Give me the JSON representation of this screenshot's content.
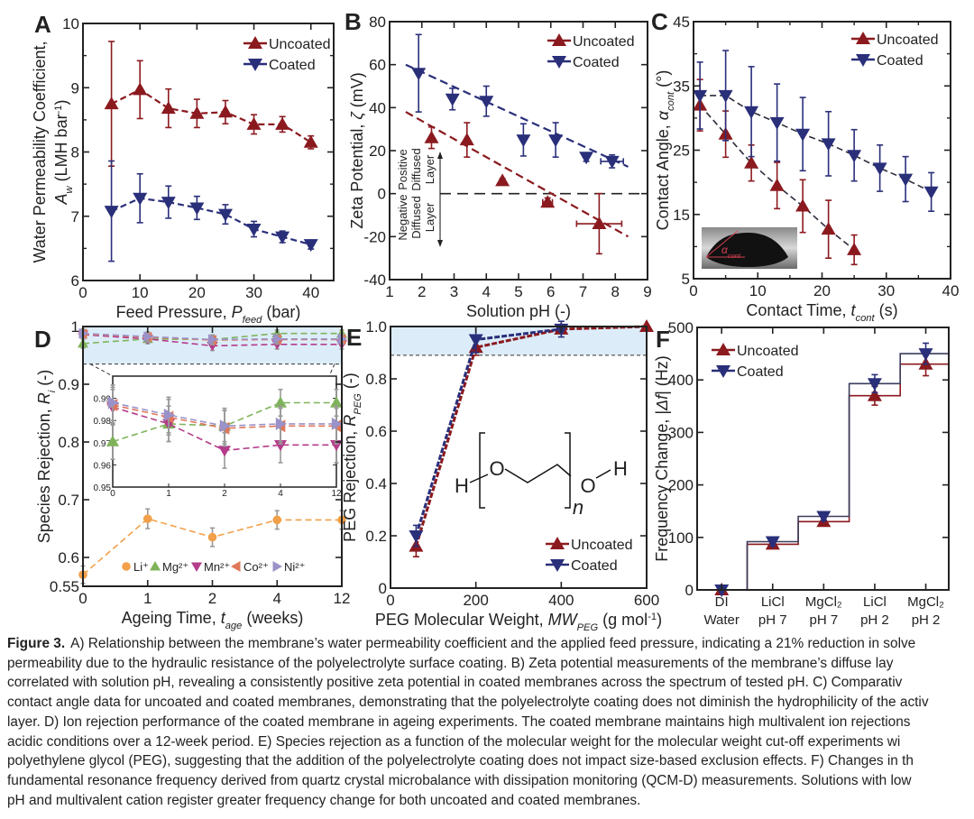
{
  "caption": {
    "label": "Figure 3.",
    "lines": [
      "A) Relationship between the membrane’s water permeability coefficient and the applied feed pressure, indicating a 21% reduction in solve",
      "permeability due to the hydraulic resistance of the polyelectrolyte surface coating. B) Zeta potential measurements of the membrane’s diffuse lay",
      "correlated with solution pH, revealing a consistently positive zeta potential in coated membranes across the spectrum of tested pH. C) Comparativ",
      "contact angle data for uncoated and coated membranes, demonstrating that the polyelectrolyte coating does not diminish the hydrophilicity of the activ",
      "layer. D) Ion rejection performance of the coated membrane in ageing experiments. The coated membrane maintains high multivalent ion rejections",
      "acidic conditions over a 12-week period. E) Species rejection as a function of the molecular weight for the molecular weight cut-off experiments wi",
      "polyethylene glycol (PEG), suggesting that the addition of the polyelectrolyte coating does not impact size-based exclusion effects. F) Changes in th",
      "fundamental resonance frequency derived from quartz crystal microbalance with dissipation monitoring (QCM-D) measurements. Solutions with low",
      "pH and multivalent cation register greater frequency change for both uncoated and coated membranes."
    ]
  },
  "colors": {
    "uncoated": "#8b1a1f",
    "coated": "#2a2f7a",
    "band": "#dcedf9"
  },
  "chart_data": [
    {
      "panel": "A",
      "type": "line",
      "xlabel": [
        {
          "t": "Feed Pressure, "
        },
        {
          "t": "P",
          "s": "i"
        },
        {
          "t": "feed",
          "s": "sub"
        },
        {
          "t": " (bar)"
        }
      ],
      "ylabel": [
        [
          {
            "t": "Water Permeability Coefficient,"
          }
        ],
        [
          {
            "t": "A",
            "s": "i"
          },
          {
            "t": "w",
            "s": "sub"
          },
          {
            "t": " (LMH bar"
          },
          {
            "t": "-1",
            "s": "sup"
          },
          {
            "t": ")"
          }
        ]
      ],
      "xlim": [
        0,
        44
      ],
      "ylim": [
        6,
        10
      ],
      "xticks": [
        0,
        10,
        20,
        30,
        40
      ],
      "xticklabels": [
        "0",
        "10",
        "20",
        "30",
        "40"
      ],
      "yticks": [
        6,
        7,
        8,
        9,
        10
      ],
      "yticklabels": [
        "6",
        "7",
        "8",
        "9",
        "10"
      ],
      "yminor": [
        6.5,
        7.5,
        8.5,
        9.5
      ],
      "legend": "top-right",
      "series": [
        {
          "name": "Uncoated",
          "color": "#8b1a1f",
          "marker": "triangle-up",
          "x": [
            5,
            10,
            15,
            20,
            25,
            30,
            35,
            40
          ],
          "y": [
            8.75,
            8.97,
            8.68,
            8.6,
            8.62,
            8.43,
            8.43,
            8.15
          ],
          "yerr": [
            0.97,
            0.45,
            0.3,
            0.22,
            0.18,
            0.15,
            0.12,
            0.1
          ]
        },
        {
          "name": "Coated",
          "color": "#2a2f7a",
          "marker": "triangle-down",
          "x": [
            5,
            10,
            15,
            20,
            25,
            30,
            35,
            40
          ],
          "y": [
            7.08,
            7.28,
            7.22,
            7.13,
            7.03,
            6.8,
            6.68,
            6.56
          ],
          "yerr": [
            0.78,
            0.38,
            0.25,
            0.18,
            0.15,
            0.12,
            0.09,
            0.07
          ]
        }
      ]
    },
    {
      "panel": "B",
      "type": "scatter",
      "xlabel": [
        {
          "t": "Solution pH (-)"
        }
      ],
      "ylabel": [
        [
          {
            "t": "Zeta Potential, "
          },
          {
            "t": "ζ",
            "s": "i"
          },
          {
            "t": " (mV)"
          }
        ]
      ],
      "xlim": [
        1,
        9
      ],
      "ylim": [
        -40,
        80
      ],
      "xticks": [
        1,
        2,
        3,
        4,
        5,
        6,
        7,
        8,
        9
      ],
      "xticklabels": [
        "1",
        "2",
        "3",
        "4",
        "5",
        "6",
        "7",
        "8",
        "9"
      ],
      "yticks": [
        -40,
        -20,
        0,
        20,
        40,
        60,
        80
      ],
      "yticklabels": [
        "-40",
        "-20",
        "0",
        "20",
        "40",
        "60",
        "80"
      ],
      "legend": "top-right",
      "series": [
        {
          "name": "Uncoated",
          "color": "#8b1a1f",
          "marker": "triangle-up",
          "x": [
            2.3,
            3.4,
            4.5,
            5.9,
            7.5
          ],
          "y": [
            26,
            25,
            6,
            -4,
            -14
          ],
          "yerr": [
            5,
            8,
            1,
            2,
            14
          ],
          "xerr": [
            0,
            0,
            0,
            0.15,
            0.7
          ],
          "trend": [
            [
              1.5,
              38
            ],
            [
              8.4,
              -20
            ]
          ]
        },
        {
          "name": "Coated",
          "color": "#2a2f7a",
          "marker": "triangle-down",
          "x": [
            1.9,
            2.95,
            4.0,
            5.15,
            6.15,
            7.1,
            7.9
          ],
          "y": [
            56,
            44,
            43,
            25,
            25,
            17,
            15
          ],
          "yerr": [
            18,
            5,
            7,
            7.5,
            8,
            2,
            3
          ],
          "xerr": [
            0,
            0,
            0,
            0,
            0,
            0,
            0.35
          ],
          "trend": [
            [
              1.5,
              60
            ],
            [
              8.4,
              12.5
            ]
          ]
        }
      ],
      "reference_line_y": 0,
      "annotations": {
        "positive": [
          "Positive",
          "Diffused",
          "Layer"
        ],
        "negative": [
          "Negative",
          "Diffused",
          "Layer"
        ]
      }
    },
    {
      "panel": "C",
      "type": "line",
      "xlabel": [
        {
          "t": "Contact Time, "
        },
        {
          "t": "t",
          "s": "i"
        },
        {
          "t": "cont",
          "s": "sub"
        },
        {
          "t": " (s)"
        }
      ],
      "ylabel": [
        [
          {
            "t": "Contact Angle, "
          },
          {
            "t": "α",
            "s": "i"
          },
          {
            "t": "cont",
            "s": "sub"
          },
          {
            "t": " (°)"
          }
        ]
      ],
      "xlim": [
        0,
        40
      ],
      "ylim": [
        5,
        45
      ],
      "xticks": [
        0,
        10,
        20,
        30,
        40
      ],
      "xticklabels": [
        "0",
        "10",
        "20",
        "30",
        "40"
      ],
      "xminor": [
        5,
        15,
        25,
        35
      ],
      "yticks": [
        5,
        15,
        25,
        35,
        45
      ],
      "yticklabels": [
        "5",
        "15",
        "25",
        "35",
        "45"
      ],
      "yminor": [
        10,
        20,
        30,
        40
      ],
      "legend": "top-right",
      "series": [
        {
          "name": "Uncoated",
          "color": "#8b1a1f",
          "marker": "triangle-up",
          "x": [
            1,
            5,
            9,
            13,
            17,
            21,
            25
          ],
          "y": [
            32,
            27.5,
            23,
            19.5,
            16.3,
            12.7,
            9.5
          ],
          "yerr": [
            4,
            3.6,
            2.8,
            3.6,
            4.1,
            4.5,
            2.3
          ]
        },
        {
          "name": "Coated",
          "color": "#2a2f7a",
          "marker": "triangle-down",
          "x": [
            1,
            5,
            9,
            13,
            17,
            21,
            25,
            29,
            33,
            37
          ],
          "y": [
            33.5,
            33.5,
            31,
            29.3,
            27.5,
            26,
            24.2,
            22.2,
            20.5,
            18.5
          ],
          "yerr": [
            5.2,
            7,
            7,
            6,
            5.7,
            5,
            4,
            3.6,
            3.5,
            3
          ]
        }
      ],
      "inset_label": [
        {
          "t": "α",
          "s": "i"
        },
        {
          "t": "cont",
          "s": "sub"
        }
      ]
    },
    {
      "panel": "D",
      "type": "line",
      "xlabel": [
        {
          "t": "Ageing Time, "
        },
        {
          "t": "t",
          "s": "i"
        },
        {
          "t": "age",
          "s": "sub"
        },
        {
          "t": " (weeks)"
        }
      ],
      "ylabel": [
        [
          {
            "t": "Species Rejection, "
          },
          {
            "t": "R",
            "s": "i"
          },
          {
            "t": "i",
            "s": "sub"
          },
          {
            "t": " (-)"
          }
        ]
      ],
      "categories": [
        "0",
        "1",
        "2",
        "4",
        "12"
      ],
      "ylim": [
        0.55,
        1.0
      ],
      "yticks": [
        0.55,
        0.6,
        0.7,
        0.8,
        0.9,
        1.0
      ],
      "yticklabels": [
        "0.55",
        "0.6",
        "0.7",
        "0.8",
        "0.9",
        "1"
      ],
      "highlight_band": [
        0.935,
        1.0
      ],
      "legend": "bottom",
      "series": [
        {
          "name": "Li⁺",
          "color": "#f2a04a",
          "marker": "circle",
          "y": [
            0.57,
            0.667,
            0.635,
            0.665,
            0.665
          ],
          "yerr": [
            0.015,
            0.017,
            0.016,
            0.016,
            0.016
          ]
        },
        {
          "name": "Mg²⁺",
          "color": "#7fb35a",
          "marker": "triangle-up",
          "y": [
            0.9705,
            0.9785,
            0.9775,
            0.988,
            0.988
          ],
          "yerr": [
            0.008,
            0.008,
            0.007,
            0.006,
            0.006
          ]
        },
        {
          "name": "Mn²⁺",
          "color": "#b43c8a",
          "marker": "triangle-down",
          "y": [
            0.986,
            0.9785,
            0.9665,
            0.969,
            0.969
          ],
          "yerr": [
            0.008,
            0.008,
            0.008,
            0.008,
            0.008
          ]
        },
        {
          "name": "Co²⁺",
          "color": "#e0775a",
          "marker": "triangle-left",
          "y": [
            0.987,
            0.9815,
            0.9765,
            0.9775,
            0.9775
          ],
          "yerr": [
            0.008,
            0.008,
            0.008,
            0.008,
            0.008
          ]
        },
        {
          "name": "Ni²⁺",
          "color": "#9a92c8",
          "marker": "triangle-right",
          "y": [
            0.988,
            0.9825,
            0.9775,
            0.9785,
            0.9785
          ],
          "yerr": [
            0.008,
            0.008,
            0.008,
            0.008,
            0.008
          ]
        }
      ],
      "inset": {
        "ylim": [
          0.95,
          1.0
        ],
        "yticks": [
          0.95,
          0.96,
          0.97,
          0.98,
          0.99
        ],
        "yticklabels": [
          "0.95",
          "0.96",
          "0.97",
          "0.98",
          "0.99"
        ],
        "xticklabels": [
          "0",
          "1",
          "2",
          "4",
          "12"
        ]
      }
    },
    {
      "panel": "E",
      "type": "line",
      "xlabel": [
        {
          "t": "PEG Molecular Weight, "
        },
        {
          "t": "MW",
          "s": "i"
        },
        {
          "t": "PEG",
          "s": "sub"
        },
        {
          "t": " (g mol"
        },
        {
          "t": "-1",
          "s": "sup"
        },
        {
          "t": ")"
        }
      ],
      "ylabel": [
        [
          {
            "t": "PEG Rejection, "
          },
          {
            "t": "R",
            "s": "i"
          },
          {
            "t": "PEG",
            "s": "sub"
          },
          {
            "t": " (-)"
          }
        ]
      ],
      "xlim": [
        0,
        600
      ],
      "ylim": [
        0,
        1.0
      ],
      "xticks": [
        0,
        200,
        400,
        600
      ],
      "xticklabels": [
        "0",
        "200",
        "400",
        "600"
      ],
      "yticks": [
        0,
        0.2,
        0.4,
        0.6,
        0.8,
        1.0
      ],
      "yticklabels": [
        "0",
        "0.2",
        "0.4",
        "0.6",
        "0.8",
        "1.0"
      ],
      "highlight_band": [
        0.89,
        1.0
      ],
      "legend": "bottom-right",
      "series": [
        {
          "name": "Uncoated",
          "color": "#8b1a1f",
          "marker": "triangle-up",
          "x": [
            60,
            200,
            400,
            600
          ],
          "y": [
            0.16,
            0.92,
            0.99,
            1.0
          ],
          "yerr": [
            0.04,
            0.03,
            0.01,
            0
          ]
        },
        {
          "name": "Coated",
          "color": "#2a2f7a",
          "marker": "triangle-down",
          "x": [
            60,
            200,
            400
          ],
          "y": [
            0.2,
            0.95,
            0.99
          ],
          "yerr": [
            0.04,
            0.05,
            0.03
          ]
        }
      ],
      "structure": {
        "h_left": "H",
        "o_left": "O",
        "subscript": "n",
        "o_right": "O",
        "h_right": "H"
      }
    },
    {
      "panel": "F",
      "type": "step",
      "xlabel": [],
      "ylabel": [
        [
          {
            "t": "Frequency Change, |"
          },
          {
            "t": "Δf",
            "s": "i"
          },
          {
            "t": "| (Hz)"
          }
        ]
      ],
      "categories": [
        [
          "DI",
          "Water"
        ],
        [
          "LiCl",
          "pH 7"
        ],
        [
          "MgCl₂",
          "pH 7"
        ],
        [
          "LiCl",
          "pH 2"
        ],
        [
          "MgCl₂",
          "pH 2"
        ]
      ],
      "ylim": [
        0,
        500
      ],
      "yticks": [
        0,
        100,
        200,
        300,
        400,
        500
      ],
      "yticklabels": [
        "0",
        "100",
        "200",
        "300",
        "400",
        "500"
      ],
      "legend": "top-left",
      "series": [
        {
          "name": "Uncoated",
          "color": "#8b1a1f",
          "marker": "triangle-up",
          "y": [
            0,
            87,
            130,
            370,
            430
          ],
          "yerr": [
            0,
            8,
            8,
            18,
            22
          ]
        },
        {
          "name": "Coated",
          "color": "#2a2f7a",
          "marker": "triangle-down",
          "y": [
            0,
            92,
            140,
            393,
            450
          ],
          "yerr": [
            0,
            8,
            8,
            17,
            20
          ]
        }
      ]
    }
  ]
}
